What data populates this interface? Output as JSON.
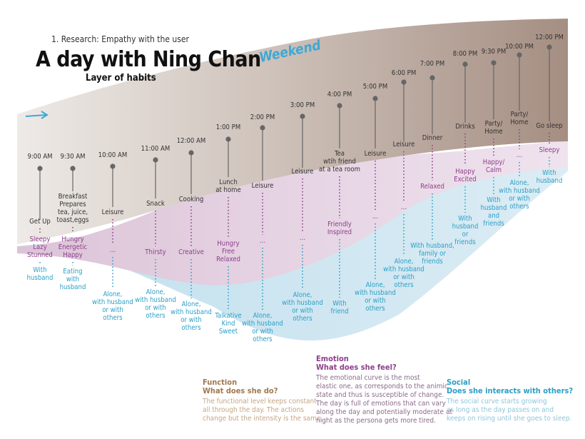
{
  "header": {
    "subtitle": "1. Research: Empathy with the user",
    "title": "A day with Ning Chan",
    "layer": "Layer of habits",
    "weekend": "Weekend"
  },
  "colors": {
    "function": "#a58e82",
    "emotion": "#e4cde0",
    "social": "#c5e3ef",
    "function_text": "#a07850",
    "emotion_text": "#8e3f8a",
    "social_text": "#2b9fc6",
    "pin": "#666666"
  },
  "timeline": [
    {
      "time": "9:00 AM",
      "activity": "Get Up",
      "emotion": "Sleepy\nLazy\nStunned",
      "social": "With\nhusband"
    },
    {
      "time": "9:30 AM",
      "activity": "Breakfast\nPrepares\ntea, juice,\ntoast,eggs",
      "emotion": "Hungry\nEnergetic\nHappy",
      "social": "Eating\nwith\nhusband"
    },
    {
      "time": "10:00 AM",
      "activity": "Leisure",
      "emotion": "...",
      "social": "Alone,\nwith husband\nor with\nothers"
    },
    {
      "time": "11:00 AM",
      "activity": "Snack",
      "emotion": "Thirsty",
      "social": "Alone,\nwith husband\nor with\nothers"
    },
    {
      "time": "12:00 AM",
      "activity": "Cooking",
      "emotion": "Creative",
      "social": "Alone,\nwith husband\nor with\nothers"
    },
    {
      "time": "1:00 PM",
      "activity": "Lunch\nat home",
      "emotion": "Hungry\nFree\nRelaxed",
      "social": "Talkative\nKind\nSweet"
    },
    {
      "time": "2:00 PM",
      "activity": "Leisure",
      "emotion": "...",
      "social": "Alone,\nwith husband\nor with\nothers"
    },
    {
      "time": "3:00 PM",
      "activity": "Leisure",
      "emotion": "...",
      "social": "Alone,\nwith husband\nor with\nothers"
    },
    {
      "time": "4:00 PM",
      "activity": "Tea\nwtih friend\nat a tea room",
      "emotion": "Friendly\nInspired",
      "social": "With\nfriend"
    },
    {
      "time": "5:00 PM",
      "activity": "Leisure",
      "emotion": "...",
      "social": "Alone,\nwith husband\nor with\nothers"
    },
    {
      "time": "6:00 PM",
      "activity": "Leisure",
      "emotion": "...",
      "social": "Alone,\nwith husband\nor with\nothers"
    },
    {
      "time": "7:00 PM",
      "activity": "Dinner",
      "emotion": "Relaxed",
      "social": "With husband,\nfamily or\nfriends"
    },
    {
      "time": "8:00 PM",
      "activity": "Drinks",
      "emotion": "Happy\nExcited",
      "social": "With\nhusband\nor\nfriends"
    },
    {
      "time": "9:30 PM",
      "activity": "Party/\nHome",
      "emotion": "Happy/\nCalm",
      "social": "With\nhusband\nand\nfriends"
    },
    {
      "time": "10:00 PM",
      "activity": "Party/\nHome",
      "emotion": "...",
      "social": "Alone,\nwith husband\nor with\nothers"
    },
    {
      "time": "12:00 PM",
      "activity": "Go sleep",
      "emotion": "Sleepy",
      "social": "With\nhusband"
    }
  ],
  "legend": {
    "function": {
      "title": "Function",
      "question": "What does she do?",
      "text": "The functional level keeps constant\nall through the day. The actions\nchange but the intensity is the same."
    },
    "emotion": {
      "title": "Emotion",
      "question": "What does she feel?",
      "text": "The emotional curve is the most\nelastic one, as corresponds to the animic\nstate and thus is susceptible of change.\nThe day is full of emotions that can vary\nalong the day and potentially moderate at\nnight as the persona gets more tired."
    },
    "social": {
      "title": "Social",
      "question": "Does she interacts with others?",
      "text": "The social curve starts growing\nas long as the day passes on and\nkeeps on rising until she goes to sleep."
    }
  }
}
